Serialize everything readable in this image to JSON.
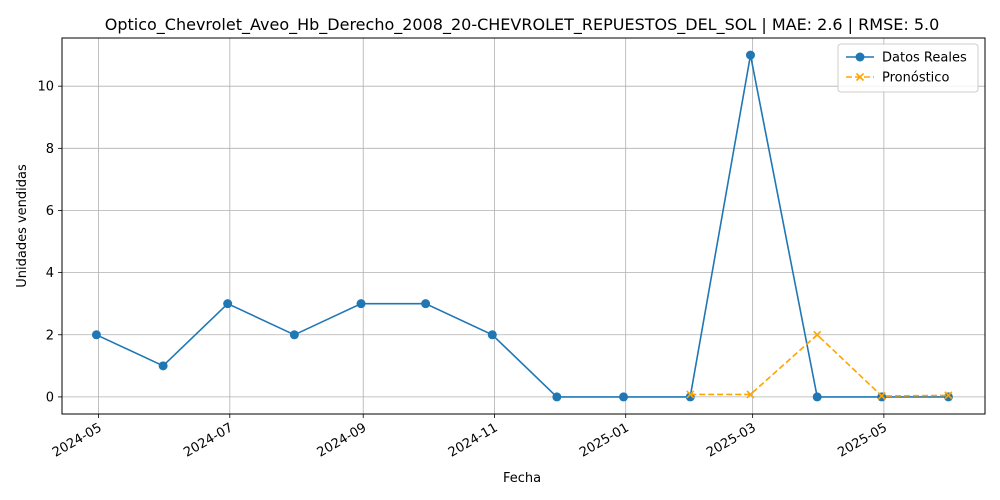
{
  "chart_data": {
    "type": "line",
    "title": "Optico_Chevrolet_Aveo_Hb_Derecho_2008_20-CHEVROLET_REPUESTOS_DEL_SOL | MAE: 2.6 | RMSE: 5.0",
    "xlabel": "Fecha",
    "ylabel": "Unidades vendidas",
    "x_ticks": [
      "2024-05",
      "2024-07",
      "2024-09",
      "2024-11",
      "2025-01",
      "2025-03",
      "2025-05"
    ],
    "y_ticks": [
      0,
      2,
      4,
      6,
      8,
      10
    ],
    "xlim": [
      "2024-04-14",
      "2025-06-17"
    ],
    "ylim": [
      -0.55,
      11.55
    ],
    "grid": true,
    "legend_position": "top-right",
    "series": [
      {
        "name": "Datos Reales",
        "color": "#1f77b4",
        "marker": "circle",
        "line_style": "solid",
        "x": [
          "2024-04-30",
          "2024-05-31",
          "2024-06-30",
          "2024-07-31",
          "2024-08-31",
          "2024-09-30",
          "2024-10-31",
          "2024-11-30",
          "2024-12-31",
          "2025-01-31",
          "2025-02-28",
          "2025-03-31",
          "2025-04-30",
          "2025-05-31"
        ],
        "values": [
          2,
          1,
          3,
          2,
          3,
          3,
          2,
          0,
          0,
          0,
          11,
          0,
          0,
          0
        ]
      },
      {
        "name": "Pronóstico",
        "color": "#ffa500",
        "marker": "x",
        "line_style": "dashed",
        "x": [
          "2025-01-31",
          "2025-02-28",
          "2025-03-31",
          "2025-04-30",
          "2025-05-31"
        ],
        "values": [
          0.08,
          0.08,
          2.0,
          0.03,
          0.05
        ]
      }
    ]
  }
}
